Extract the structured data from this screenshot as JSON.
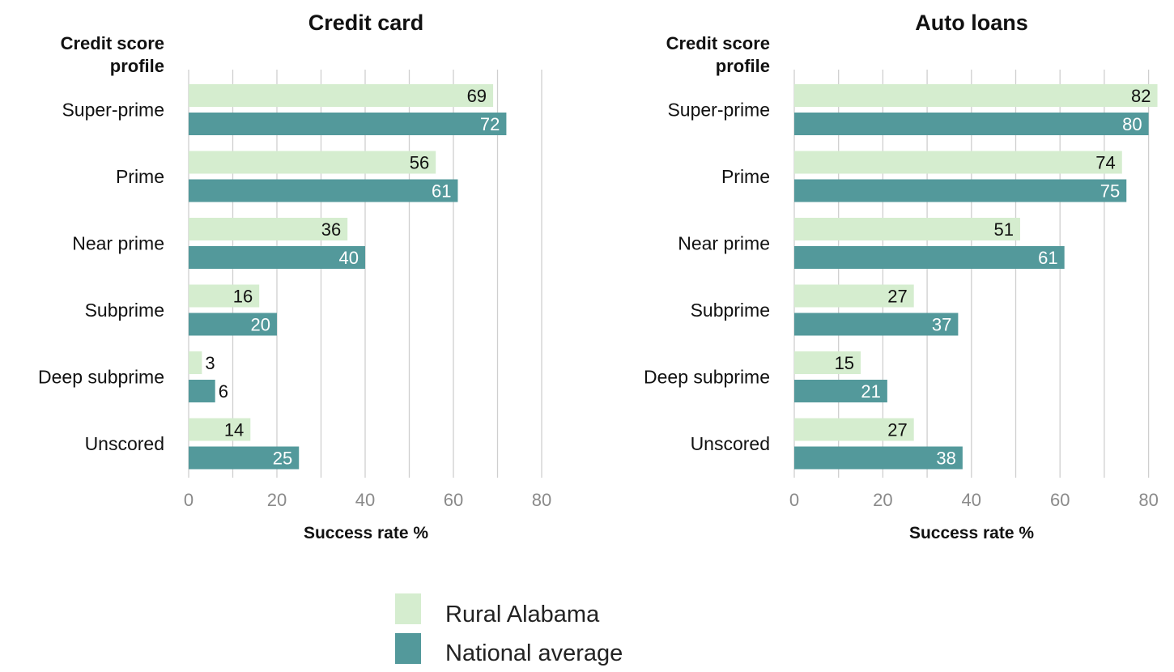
{
  "chart_data": [
    {
      "type": "bar",
      "orientation": "horizontal",
      "title": "Credit card",
      "ylabel": "Credit score profile",
      "xlabel": "Success rate %",
      "categories": [
        "Super-prime",
        "Prime",
        "Near prime",
        "Subprime",
        "Deep subprime",
        "Unscored"
      ],
      "series": [
        {
          "name": "Rural Alabama",
          "values": [
            69,
            56,
            36,
            16,
            3,
            14
          ]
        },
        {
          "name": "National average",
          "values": [
            72,
            61,
            40,
            20,
            6,
            25
          ]
        }
      ],
      "xlim": [
        0,
        80
      ],
      "ticks": [
        "0",
        "20",
        "40",
        "60",
        "80"
      ],
      "grid": true
    },
    {
      "type": "bar",
      "orientation": "horizontal",
      "title": "Auto loans",
      "ylabel": "Credit score profile",
      "xlabel": "Success rate %",
      "categories": [
        "Super-prime",
        "Prime",
        "Near prime",
        "Subprime",
        "Deep subprime",
        "Unscored"
      ],
      "series": [
        {
          "name": "Rural Alabama",
          "values": [
            82,
            74,
            51,
            27,
            15,
            27
          ]
        },
        {
          "name": "National average",
          "values": [
            80,
            75,
            61,
            37,
            21,
            38
          ]
        }
      ],
      "xlim": [
        0,
        80
      ],
      "ticks": [
        "0",
        "20",
        "40",
        "60",
        "80"
      ],
      "grid": true
    }
  ],
  "legend": {
    "placement": "bottom-center",
    "items": [
      {
        "label": "Rural Alabama",
        "color": "#d5edcf"
      },
      {
        "label": "National average",
        "color": "#53999b"
      }
    ]
  },
  "colors": {
    "rural": "#d5edcf",
    "national": "#53999b",
    "grid": "#cfcfcf",
    "tick_text": "#8a8a8a",
    "label_dark": "#111111",
    "label_light": "#ffffff"
  }
}
